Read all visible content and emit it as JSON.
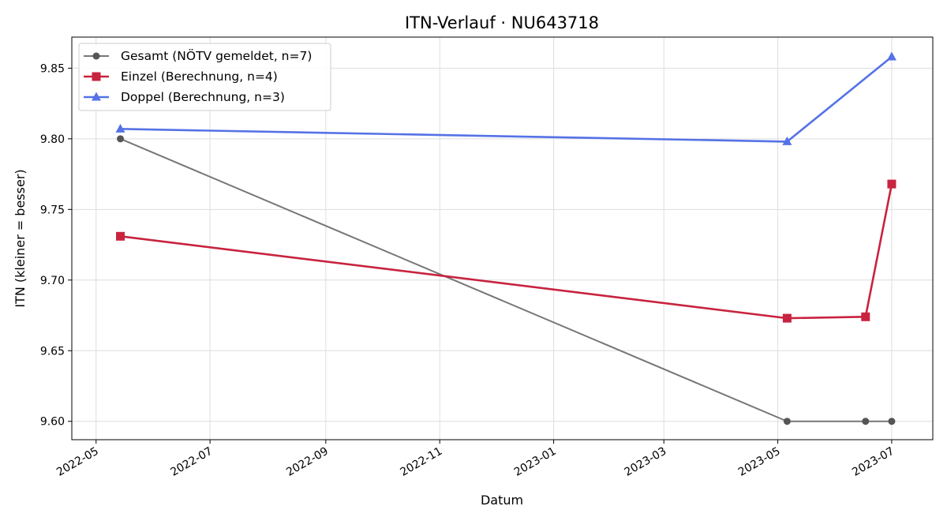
{
  "chart_data": {
    "type": "line",
    "title": "ITN-Verlauf · NU643718",
    "xlabel": "Datum",
    "ylabel": "ITN  (kleiner = besser)",
    "x_ticks": [
      "2022-05",
      "2022-07",
      "2022-09",
      "2022-11",
      "2023-01",
      "2023-03",
      "2023-05",
      "2023-07"
    ],
    "y_ticks": [
      "9.60",
      "9.65",
      "9.70",
      "9.75",
      "9.80",
      "9.85"
    ],
    "xlim": [
      "2022-04-18",
      "2023-07-23"
    ],
    "ylim": [
      9.587,
      9.872
    ],
    "grid": true,
    "legend_position": "top-left",
    "series": [
      {
        "name": "Gesamt (NÖTV gemeldet, n=7)",
        "color": "#777777",
        "marker_color": "#555555",
        "marker": "circle",
        "points": [
          {
            "x": "2022-05-14",
            "y": 9.8
          },
          {
            "x": "2023-05-06",
            "y": 9.6
          },
          {
            "x": "2023-06-17",
            "y": 9.6
          },
          {
            "x": "2023-07-01",
            "y": 9.6
          }
        ]
      },
      {
        "name": "Einzel (Berechnung, n=4)",
        "color": "#c8233f",
        "marker_color": "#c8233f",
        "marker": "square",
        "points": [
          {
            "x": "2022-05-14",
            "y": 9.731
          },
          {
            "x": "2023-05-06",
            "y": 9.673
          },
          {
            "x": "2023-06-17",
            "y": 9.674
          },
          {
            "x": "2023-07-01",
            "y": 9.768
          }
        ]
      },
      {
        "name": "Doppel (Berechnung, n=3)",
        "color": "#5572e6",
        "marker_color": "#5572e6",
        "marker": "triangle",
        "points": [
          {
            "x": "2022-05-14",
            "y": 9.807
          },
          {
            "x": "2023-05-06",
            "y": 9.798
          },
          {
            "x": "2023-07-01",
            "y": 9.858
          }
        ]
      }
    ]
  }
}
